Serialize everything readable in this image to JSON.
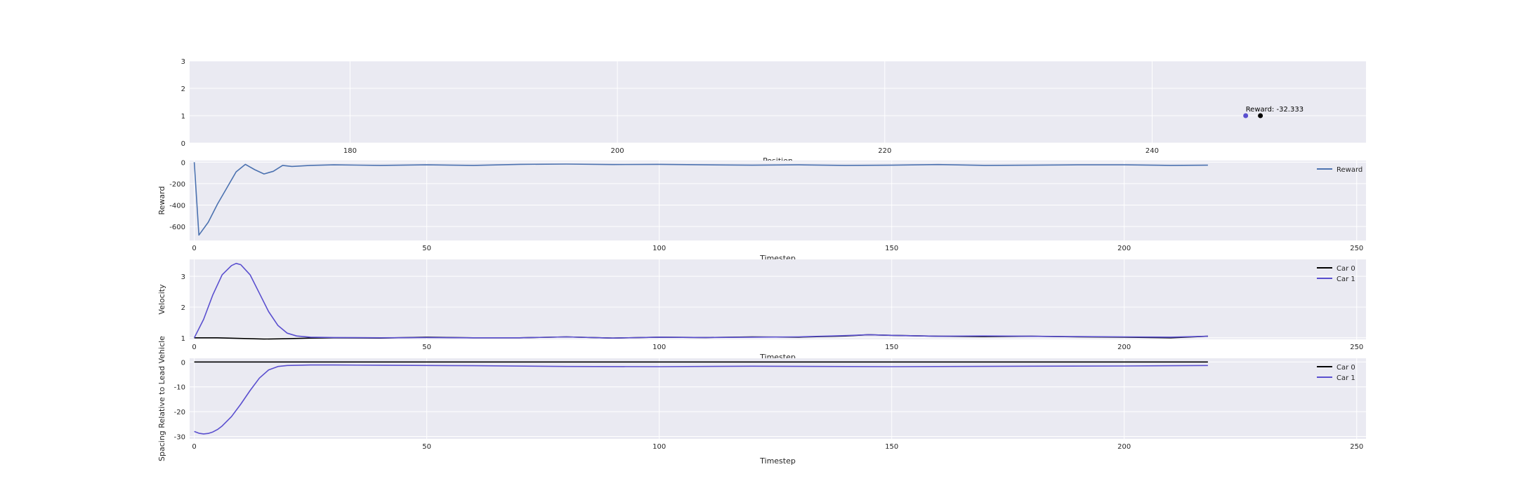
{
  "colors": {
    "axes_bg": "#EAEAF2",
    "grid": "#FFFFFF",
    "reward_line": "#4C72B0",
    "car0": "#000000",
    "car1": "#5A4FCF",
    "position_car0_marker": "#5A4FCF",
    "position_car1_marker": "#000000"
  },
  "chart_data": [
    {
      "type": "scatter",
      "xlabel": "Position",
      "ylabel": "",
      "xlim": [
        168,
        256
      ],
      "ylim": [
        0,
        3
      ],
      "xticks": [
        180,
        200,
        220,
        240
      ],
      "yticks": [
        0,
        1,
        2,
        3
      ],
      "points": [
        {
          "x": 247.0,
          "y": 1.0,
          "color": "#5A4FCF"
        },
        {
          "x": 248.1,
          "y": 1.0,
          "color": "#000000"
        }
      ],
      "annotation": {
        "text": "Reward: -32.333",
        "x": 247.0,
        "y": 1.0
      }
    },
    {
      "type": "line",
      "xlabel": "Timestep",
      "ylabel": "Reward",
      "xlim": [
        -1,
        252
      ],
      "ylim": [
        -730,
        15
      ],
      "xticks": [
        0,
        50,
        100,
        150,
        200,
        250
      ],
      "yticks": [
        0,
        -200,
        -400,
        -600
      ],
      "legend": "top-right",
      "series": [
        {
          "name": "Reward",
          "color": "#4C72B0",
          "x": [
            0,
            1,
            3,
            5,
            7,
            9,
            11,
            13,
            15,
            17,
            19,
            21,
            25,
            30,
            40,
            50,
            60,
            70,
            80,
            90,
            100,
            110,
            120,
            130,
            140,
            150,
            160,
            170,
            180,
            190,
            200,
            210,
            218
          ],
          "y": [
            0,
            -680,
            -560,
            -390,
            -240,
            -90,
            -20,
            -70,
            -110,
            -85,
            -30,
            -40,
            -30,
            -25,
            -30,
            -25,
            -30,
            -20,
            -18,
            -22,
            -20,
            -25,
            -28,
            -25,
            -30,
            -28,
            -22,
            -30,
            -28,
            -25,
            -25,
            -30,
            -28
          ]
        }
      ]
    },
    {
      "type": "line",
      "xlabel": "Timestep",
      "ylabel": "Velocity",
      "xlim": [
        -1,
        252
      ],
      "ylim": [
        0.95,
        3.55
      ],
      "xticks": [
        0,
        50,
        100,
        150,
        200,
        250
      ],
      "yticks": [
        1,
        2,
        3
      ],
      "legend": "top-right",
      "series": [
        {
          "name": "Car 0",
          "color": "#000000",
          "x": [
            0,
            5,
            10,
            15,
            20,
            25,
            30,
            40,
            50,
            60,
            70,
            80,
            90,
            100,
            110,
            120,
            130,
            140,
            145,
            150,
            160,
            170,
            180,
            190,
            200,
            210,
            218
          ],
          "y": [
            1.0,
            1.0,
            0.98,
            0.96,
            0.97,
            0.99,
            1.0,
            0.99,
            1.02,
            1.0,
            1.0,
            1.03,
            0.99,
            1.02,
            1.01,
            1.03,
            1.02,
            1.06,
            1.1,
            1.08,
            1.05,
            1.04,
            1.05,
            1.03,
            1.02,
            1.0,
            1.05
          ]
        },
        {
          "name": "Car 1",
          "color": "#5A4FCF",
          "x": [
            0,
            2,
            4,
            6,
            8,
            9,
            10,
            12,
            14,
            16,
            18,
            20,
            22,
            25,
            30,
            40,
            50,
            60,
            70,
            80,
            90,
            100,
            110,
            120,
            130,
            140,
            145,
            150,
            160,
            170,
            180,
            190,
            200,
            210,
            218
          ],
          "y": [
            1.0,
            1.6,
            2.4,
            3.05,
            3.35,
            3.42,
            3.38,
            3.05,
            2.45,
            1.85,
            1.4,
            1.15,
            1.06,
            1.02,
            1.01,
            1.0,
            1.01,
            1.0,
            1.0,
            1.03,
            0.99,
            1.02,
            1.01,
            1.02,
            1.03,
            1.07,
            1.1,
            1.08,
            1.05,
            1.06,
            1.05,
            1.04,
            1.03,
            1.02,
            1.05
          ]
        }
      ]
    },
    {
      "type": "line",
      "xlabel": "Timestep",
      "ylabel": "Spacing Relative to Lead Vehicle",
      "xlim": [
        -1,
        252
      ],
      "ylim": [
        -31,
        1.5
      ],
      "xticks": [
        0,
        50,
        100,
        150,
        200,
        250
      ],
      "yticks": [
        0,
        -10,
        -20,
        -30
      ],
      "legend": "top-right",
      "series": [
        {
          "name": "Car 0",
          "color": "#000000",
          "x": [
            0,
            50,
            100,
            150,
            200,
            218
          ],
          "y": [
            0,
            0,
            0,
            0,
            0,
            0
          ]
        },
        {
          "name": "Car 1",
          "color": "#5A4FCF",
          "x": [
            0,
            1,
            2,
            3,
            4,
            5,
            6,
            8,
            10,
            12,
            14,
            16,
            18,
            20,
            25,
            30,
            40,
            60,
            80,
            100,
            120,
            150,
            180,
            200,
            218
          ],
          "y": [
            -28,
            -28.7,
            -29,
            -28.8,
            -28.2,
            -27.2,
            -25.8,
            -22,
            -17,
            -11.5,
            -6.5,
            -3.2,
            -1.8,
            -1.4,
            -1.2,
            -1.2,
            -1.3,
            -1.5,
            -1.8,
            -1.9,
            -1.7,
            -1.9,
            -1.7,
            -1.6,
            -1.4
          ]
        }
      ]
    }
  ]
}
